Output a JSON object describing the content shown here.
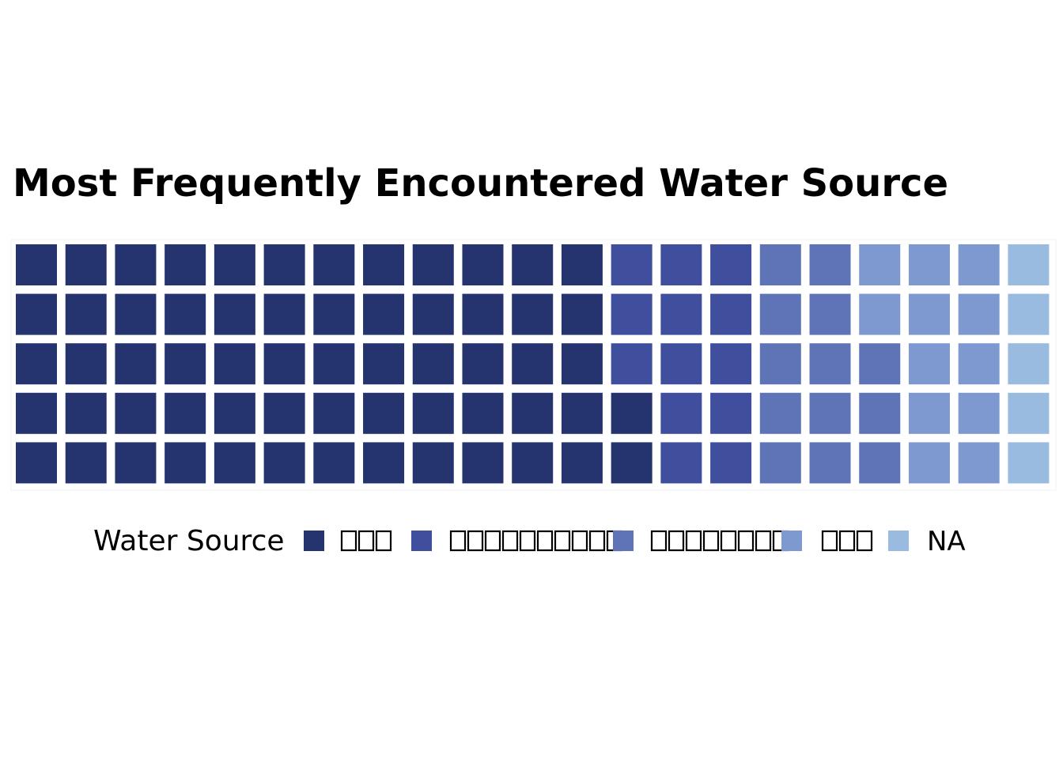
{
  "chart_data": {
    "type": "waffle",
    "title": "Most Frequently Encountered Water Source",
    "legend": {
      "title": "Water Source",
      "placement": "bottom",
      "entries": [
        {
          "label": "",
          "glyph_count": 3,
          "color": "#25346E"
        },
        {
          "label": "",
          "glyph_count": 10,
          "color": "#3F4F9D"
        },
        {
          "label": "",
          "glyph_count": 8,
          "color": "#5F74B7"
        },
        {
          "label": "",
          "glyph_count": 3,
          "color": "#7E99D0"
        },
        {
          "label": "NA",
          "glyph_count": 0,
          "color": "#98BBDF"
        }
      ]
    },
    "grid": {
      "rows": 5,
      "columns": 21,
      "fill_order": "column-major, bottom-to-top"
    },
    "series": [
      {
        "category_index": 0,
        "count": 62,
        "color": "#25346E"
      },
      {
        "category_index": 1,
        "count": 13,
        "color": "#3F4F9D"
      },
      {
        "category_index": 2,
        "count": 13,
        "color": "#5F74B7"
      },
      {
        "category_index": 3,
        "count": 12,
        "color": "#7E99D0"
      },
      {
        "category_index": 4,
        "count": 5,
        "color": "#98BBDF"
      }
    ]
  }
}
